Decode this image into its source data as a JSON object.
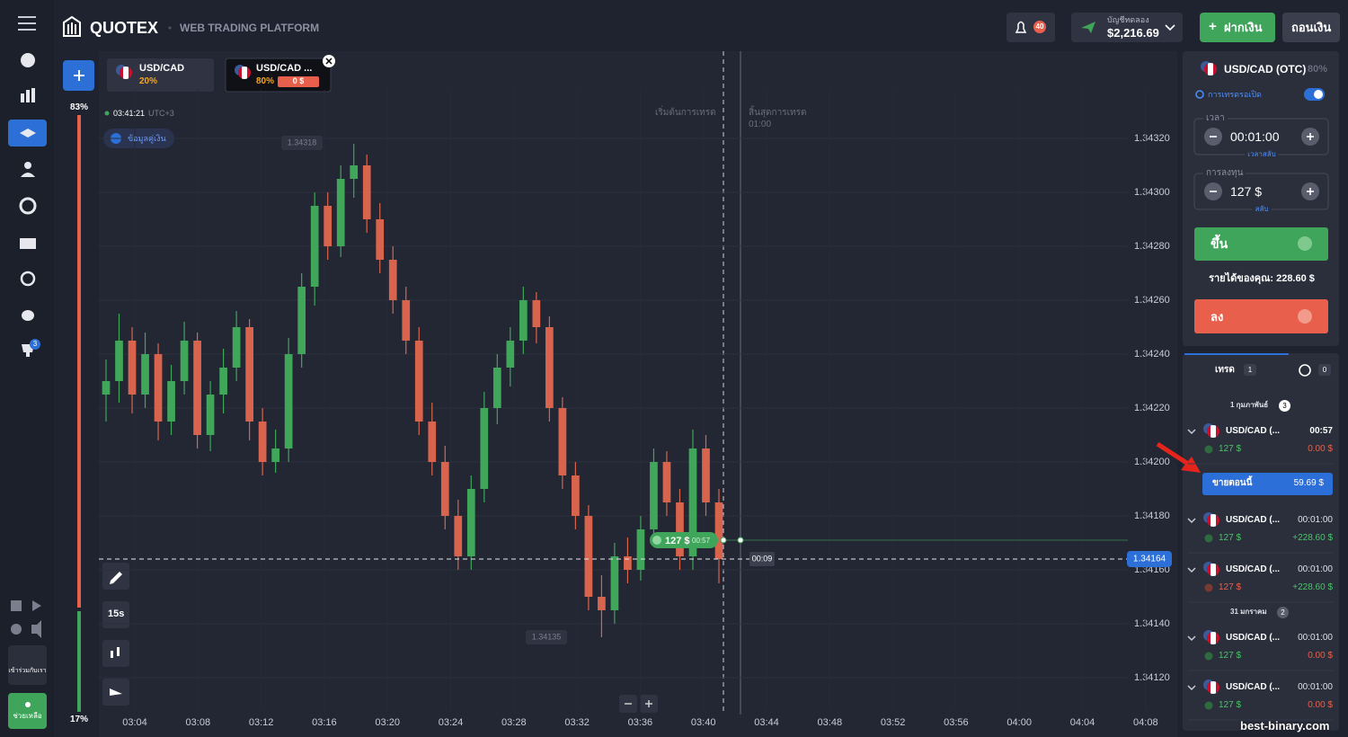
{
  "header": {
    "logo": "QUOTEX",
    "subtitle": "WEB TRADING PLATFORM",
    "notifications": "40",
    "account_type": "บัญชีทดลอง",
    "balance": "$2,216.69",
    "deposit": "ฝากเงิน",
    "withdraw": "ถอนเงิน"
  },
  "sidebar": {
    "trophy_badge": "3",
    "join": "เข้าร่วมกับเรา",
    "help": "ช่วยเหลือ"
  },
  "tabs": [
    {
      "pair": "USD/CAD",
      "payout": "20%"
    },
    {
      "pair": "USD/CAD ...",
      "payout": "80%",
      "amount": "0 $"
    }
  ],
  "chart": {
    "type": "candlestick",
    "up_percent": "83%",
    "down_percent": "17%",
    "clock": "03:41:21",
    "timezone": "UTC+3",
    "info": "ข้อมูลคู่เงิน",
    "high_label": 1.34318,
    "low_label": 1.34135,
    "start_label": "เริ่มต้นการเทรด",
    "end_label": "สิ้นสุดการเทรด",
    "end_time": "01:00",
    "trade_amount": "127 $",
    "trade_timer": "00:57",
    "countdown": "00:09",
    "current_price": 1.34164,
    "timeframe": "15s",
    "up_color": "#3fa65a",
    "down_color": "#d9644d",
    "grid": true,
    "ylim": [
      1.34108,
      1.34338
    ],
    "yticks": [
      {
        "value": 1.3432,
        "label": "1.34320"
      },
      {
        "value": 1.343,
        "label": "1.34300"
      },
      {
        "value": 1.3428,
        "label": "1.34280"
      },
      {
        "value": 1.3426,
        "label": "1.34260"
      },
      {
        "value": 1.3424,
        "label": "1.34240"
      },
      {
        "value": 1.3422,
        "label": "1.34220"
      },
      {
        "value": 1.342,
        "label": "1.34200"
      },
      {
        "value": 1.3418,
        "label": "1.34180"
      },
      {
        "value": 1.3416,
        "label": "1.34160"
      },
      {
        "value": 1.3414,
        "label": "1.34140"
      },
      {
        "value": 1.3412,
        "label": "1.34120"
      }
    ],
    "xticks": [
      "03:04",
      "03:08",
      "03:12",
      "03:16",
      "03:20",
      "03:24",
      "03:28",
      "03:32",
      "03:36",
      "03:40",
      "03:44",
      "03:48",
      "03:52",
      "03:56",
      "04:00",
      "04:04",
      "04:08"
    ],
    "candles": [
      [
        1.34225,
        1.34238,
        1.34215,
        1.3423
      ],
      [
        1.3423,
        1.34255,
        1.34222,
        1.34245
      ],
      [
        1.34245,
        1.3425,
        1.34218,
        1.34225
      ],
      [
        1.34225,
        1.34248,
        1.3422,
        1.3424
      ],
      [
        1.3424,
        1.34244,
        1.34208,
        1.34215
      ],
      [
        1.34215,
        1.34236,
        1.3421,
        1.3423
      ],
      [
        1.3423,
        1.34252,
        1.34225,
        1.34245
      ],
      [
        1.34245,
        1.34248,
        1.34205,
        1.3421
      ],
      [
        1.3421,
        1.3423,
        1.34204,
        1.34225
      ],
      [
        1.34225,
        1.34242,
        1.34218,
        1.34235
      ],
      [
        1.34235,
        1.34256,
        1.3423,
        1.3425
      ],
      [
        1.3425,
        1.34253,
        1.34208,
        1.34215
      ],
      [
        1.34215,
        1.3422,
        1.34195,
        1.342
      ],
      [
        1.342,
        1.34212,
        1.34196,
        1.34205
      ],
      [
        1.34205,
        1.34246,
        1.342,
        1.3424
      ],
      [
        1.3424,
        1.3427,
        1.34235,
        1.34265
      ],
      [
        1.34265,
        1.343,
        1.34258,
        1.34295
      ],
      [
        1.34295,
        1.343,
        1.34275,
        1.3428
      ],
      [
        1.3428,
        1.3431,
        1.34276,
        1.34305
      ],
      [
        1.34305,
        1.34318,
        1.34298,
        1.3431
      ],
      [
        1.3431,
        1.34314,
        1.34285,
        1.3429
      ],
      [
        1.3429,
        1.34296,
        1.3427,
        1.34275
      ],
      [
        1.34275,
        1.3428,
        1.34255,
        1.3426
      ],
      [
        1.3426,
        1.34265,
        1.3424,
        1.34245
      ],
      [
        1.34245,
        1.3425,
        1.3421,
        1.34215
      ],
      [
        1.34215,
        1.34222,
        1.34195,
        1.342
      ],
      [
        1.342,
        1.34206,
        1.34175,
        1.3418
      ],
      [
        1.3418,
        1.34186,
        1.3416,
        1.34165
      ],
      [
        1.34165,
        1.34195,
        1.3416,
        1.3419
      ],
      [
        1.3419,
        1.34226,
        1.34185,
        1.3422
      ],
      [
        1.3422,
        1.3424,
        1.34214,
        1.34235
      ],
      [
        1.34235,
        1.3425,
        1.34228,
        1.34245
      ],
      [
        1.34245,
        1.34265,
        1.3424,
        1.3426
      ],
      [
        1.3426,
        1.34263,
        1.34244,
        1.3425
      ],
      [
        1.3425,
        1.34254,
        1.34215,
        1.3422
      ],
      [
        1.3422,
        1.34224,
        1.3419,
        1.34195
      ],
      [
        1.34195,
        1.342,
        1.34175,
        1.3418
      ],
      [
        1.3418,
        1.34184,
        1.34145,
        1.3415
      ],
      [
        1.3415,
        1.34158,
        1.34135,
        1.34145
      ],
      [
        1.34145,
        1.3417,
        1.3414,
        1.34165
      ],
      [
        1.34165,
        1.34172,
        1.34155,
        1.3416
      ],
      [
        1.3416,
        1.3418,
        1.34156,
        1.34175
      ],
      [
        1.34175,
        1.34205,
        1.3417,
        1.342
      ],
      [
        1.342,
        1.34204,
        1.3418,
        1.34185
      ],
      [
        1.34185,
        1.3419,
        1.3416,
        1.34165
      ],
      [
        1.34165,
        1.34212,
        1.3416,
        1.34205
      ],
      [
        1.34205,
        1.3421,
        1.3418,
        1.34185
      ],
      [
        1.34185,
        1.3419,
        1.34155,
        1.34164
      ]
    ]
  },
  "trade_panel": {
    "pair": "USD/CAD (OTC)",
    "payout": "80%",
    "pending": "การเทรดรอเปิด",
    "time_label": "เวลา",
    "time": "00:01:00",
    "time_switch": "เวลาสลับ",
    "invest_label": "การลงทุน",
    "invest": "127 $",
    "invest_switch": "สลับ",
    "up": "ขึ้น",
    "income": "รายได้ของคุณ: 228.60 $",
    "down": "ลง"
  },
  "trades": {
    "tab": "เทรด",
    "open_count": "1",
    "pending_count": "0",
    "groups": [
      {
        "date": "1 กุมภาพันธ์",
        "count": "3",
        "items": [
          {
            "pair": "USD/CAD (...",
            "time": "00:57",
            "amount": "127 $",
            "result": "0.00 $",
            "direction": "up",
            "sell": "ขายตอนนี้",
            "sell_value": "59.69 $"
          },
          {
            "pair": "USD/CAD (...",
            "time": "00:01:00",
            "amount": "127 $",
            "result": "+228.60 $",
            "direction": "up"
          },
          {
            "pair": "USD/CAD (...",
            "time": "00:01:00",
            "amount": "127 $",
            "result": "+228.60 $",
            "direction": "down"
          }
        ]
      },
      {
        "date": "31 มกราคม",
        "count": "2",
        "items": [
          {
            "pair": "USD/CAD (...",
            "time": "00:01:00",
            "amount": "127 $",
            "result": "0.00 $",
            "direction": "up"
          },
          {
            "pair": "USD/CAD (...",
            "time": "00:01:00",
            "amount": "127 $",
            "result": "0.00 $",
            "direction": "up"
          }
        ]
      }
    ]
  },
  "watermark": "best-binary.com"
}
